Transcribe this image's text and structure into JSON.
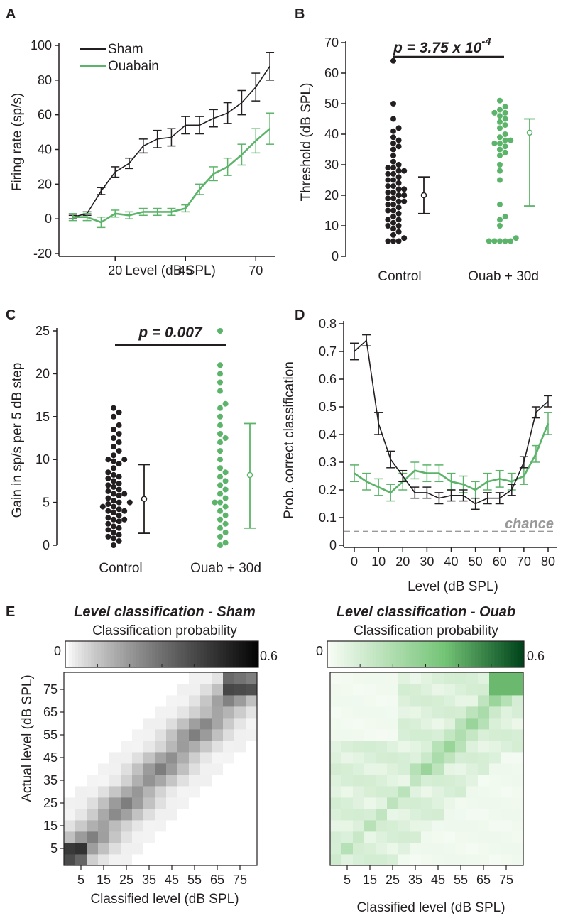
{
  "colors": {
    "sham": "#231f20",
    "ouabain": "#5cb46a",
    "chance": "#9a9a9a"
  },
  "chart_data": [
    {
      "panel": "A",
      "type": "line",
      "xlabel": "Level (dB SPL)",
      "ylabel": "Firing rate (sp/s)",
      "xlim": [
        0,
        77
      ],
      "ylim": [
        -20,
        100
      ],
      "xticks": [
        20,
        45,
        70
      ],
      "yticks": [
        -20,
        0,
        20,
        40,
        60,
        80,
        100
      ],
      "legend": {
        "position": "top-left",
        "entries": [
          "Sham",
          "Ouabain"
        ]
      },
      "series": [
        {
          "name": "Sham",
          "x": [
            5,
            10,
            15,
            20,
            25,
            30,
            35,
            40,
            45,
            50,
            55,
            60,
            65,
            70,
            75
          ],
          "y": [
            1,
            3,
            16,
            27,
            32,
            42,
            46,
            47,
            54,
            54,
            58,
            61,
            67,
            76,
            88
          ],
          "err": [
            1,
            1,
            2,
            3,
            3,
            4,
            5,
            5,
            5,
            5,
            5,
            6,
            7,
            8,
            8
          ]
        },
        {
          "name": "Ouabain",
          "x": [
            5,
            10,
            15,
            20,
            25,
            30,
            35,
            40,
            45,
            50,
            55,
            60,
            65,
            70,
            75
          ],
          "y": [
            1,
            1,
            -2,
            3,
            2,
            4,
            4,
            4,
            6,
            17,
            26,
            30,
            37,
            45,
            52
          ],
          "err": [
            2,
            2,
            3,
            2,
            2,
            2,
            2,
            2,
            2,
            3,
            4,
            5,
            6,
            7,
            9
          ]
        }
      ]
    },
    {
      "panel": "B",
      "type": "scatter",
      "xlabel": "",
      "ylabel": "Threshold (dB SPL)",
      "ylim": [
        0,
        70
      ],
      "yticks": [
        0,
        10,
        20,
        30,
        40,
        50,
        60,
        70
      ],
      "categories": [
        "Control",
        "Ouab + 30d"
      ],
      "p_value": "p = 3.75 x 10",
      "p_exponent": "-4",
      "groups": [
        {
          "name": "Control",
          "values": [
            5,
            5,
            5,
            6,
            7,
            8,
            9,
            10,
            10,
            11,
            12,
            12,
            13,
            14,
            15,
            15,
            16,
            17,
            17,
            18,
            18,
            19,
            19,
            20,
            20,
            21,
            21,
            22,
            22,
            23,
            23,
            24,
            25,
            25,
            26,
            27,
            27,
            28,
            28,
            29,
            29,
            30,
            31,
            33,
            35,
            36,
            37,
            38,
            39,
            41,
            42,
            45,
            50,
            64
          ],
          "mean": 20,
          "err_low": 14,
          "err_high": 26
        },
        {
          "name": "Ouab + 30d",
          "values": [
            5,
            5,
            5,
            5,
            5,
            6,
            10,
            12,
            13,
            17,
            25,
            28,
            30,
            33,
            34,
            35,
            36,
            37,
            37,
            38,
            38,
            39,
            40,
            42,
            43,
            44,
            45,
            46,
            47,
            47,
            48,
            49,
            51
          ],
          "mean": 40.5,
          "err_low": 16.5,
          "err_high": 45
        }
      ]
    },
    {
      "panel": "C",
      "type": "scatter",
      "xlabel": "",
      "ylabel": "Gain in sp/s per 5 dB step",
      "ylim": [
        0,
        25
      ],
      "yticks": [
        0,
        5,
        10,
        15,
        20,
        25
      ],
      "categories": [
        "Control",
        "Ouab + 30d"
      ],
      "p_value": "p = 0.007",
      "groups": [
        {
          "name": "Control",
          "values": [
            0,
            0.5,
            0.8,
            1,
            1.2,
            1.5,
            1.8,
            2,
            2.2,
            2.5,
            2.8,
            3,
            3,
            3.2,
            3.5,
            3.8,
            4,
            4,
            4.2,
            4.5,
            4.5,
            4.8,
            5,
            5,
            5.2,
            5.5,
            5.8,
            6,
            6,
            6.3,
            6.5,
            6.8,
            7,
            7.2,
            7.5,
            7.8,
            8,
            8.2,
            8.5,
            9,
            9.5,
            9.8,
            10,
            10,
            10.5,
            11,
            11.5,
            12,
            12.5,
            13,
            13.5,
            14,
            15,
            15.5,
            16
          ],
          "mean": 5.4,
          "err_low": 1.4,
          "err_high": 9.4
        },
        {
          "name": "Ouab + 30d",
          "values": [
            0,
            0.3,
            1,
            1.5,
            2,
            2.5,
            3,
            3.5,
            4,
            4.5,
            5,
            5,
            5.5,
            6,
            6.5,
            7,
            7.5,
            8,
            8.5,
            9,
            10,
            11,
            12,
            12.5,
            13,
            14,
            15,
            16,
            16.5,
            18,
            19,
            20,
            21,
            25
          ],
          "mean": 8.2,
          "err_low": 2,
          "err_high": 14.2
        }
      ]
    },
    {
      "panel": "D",
      "type": "line",
      "xlabel": "Level (dB SPL)",
      "ylabel": "Prob. correct classification",
      "xlim": [
        -3,
        83
      ],
      "ylim": [
        0,
        0.8
      ],
      "xticks": [
        0,
        10,
        20,
        30,
        40,
        50,
        60,
        70,
        80
      ],
      "yticks": [
        0,
        0.1,
        0.2,
        0.3,
        0.4,
        0.5,
        0.6,
        0.7,
        0.8
      ],
      "chance": 0.05,
      "chance_label": "chance",
      "series": [
        {
          "name": "Sham",
          "x": [
            0,
            5,
            10,
            15,
            20,
            25,
            30,
            35,
            40,
            45,
            50,
            55,
            60,
            65,
            70,
            75,
            80
          ],
          "y": [
            0.7,
            0.74,
            0.44,
            0.31,
            0.25,
            0.19,
            0.19,
            0.17,
            0.18,
            0.18,
            0.15,
            0.17,
            0.17,
            0.2,
            0.3,
            0.48,
            0.52
          ],
          "err": [
            0.03,
            0.02,
            0.04,
            0.03,
            0.02,
            0.02,
            0.02,
            0.02,
            0.02,
            0.02,
            0.02,
            0.02,
            0.02,
            0.02,
            0.02,
            0.02,
            0.02
          ]
        },
        {
          "name": "Ouabain",
          "x": [
            0,
            5,
            10,
            15,
            20,
            25,
            30,
            35,
            40,
            45,
            50,
            55,
            60,
            65,
            70,
            75,
            80
          ],
          "y": [
            0.26,
            0.23,
            0.21,
            0.19,
            0.23,
            0.27,
            0.26,
            0.26,
            0.23,
            0.22,
            0.2,
            0.23,
            0.24,
            0.23,
            0.25,
            0.33,
            0.44
          ],
          "err": [
            0.03,
            0.03,
            0.03,
            0.03,
            0.03,
            0.03,
            0.03,
            0.03,
            0.03,
            0.03,
            0.03,
            0.03,
            0.03,
            0.03,
            0.03,
            0.03,
            0.04
          ]
        }
      ]
    },
    {
      "panel": "E-left",
      "type": "heatmap",
      "title": "Level classification - Sham",
      "colorbar_label": "Classification probability",
      "colorbar_range": [
        "0",
        "0.6"
      ],
      "vmax": 0.6,
      "xlabel": "Classified level (dB SPL)",
      "ylabel": "Actual level (dB SPL)",
      "levels": [
        0,
        5,
        10,
        15,
        20,
        25,
        30,
        35,
        40,
        45,
        50,
        55,
        60,
        65,
        70,
        75,
        80
      ],
      "tick_labels": [
        "5",
        "15",
        "25",
        "35",
        "45",
        "55",
        "65",
        "75"
      ],
      "colormap": "gray"
    },
    {
      "panel": "E-right",
      "type": "heatmap",
      "title": "Level classification - Ouab",
      "colorbar_label": "Classification probability",
      "colorbar_range": [
        "0",
        "0.6"
      ],
      "vmax": 0.6,
      "xlabel": "Classified level (dB SPL)",
      "ylabel": "",
      "levels": [
        0,
        5,
        10,
        15,
        20,
        25,
        30,
        35,
        40,
        45,
        50,
        55,
        60,
        65,
        70,
        75,
        80
      ],
      "tick_labels": [
        "5",
        "15",
        "25",
        "35",
        "45",
        "55",
        "65",
        "75"
      ],
      "colormap": "green"
    }
  ]
}
